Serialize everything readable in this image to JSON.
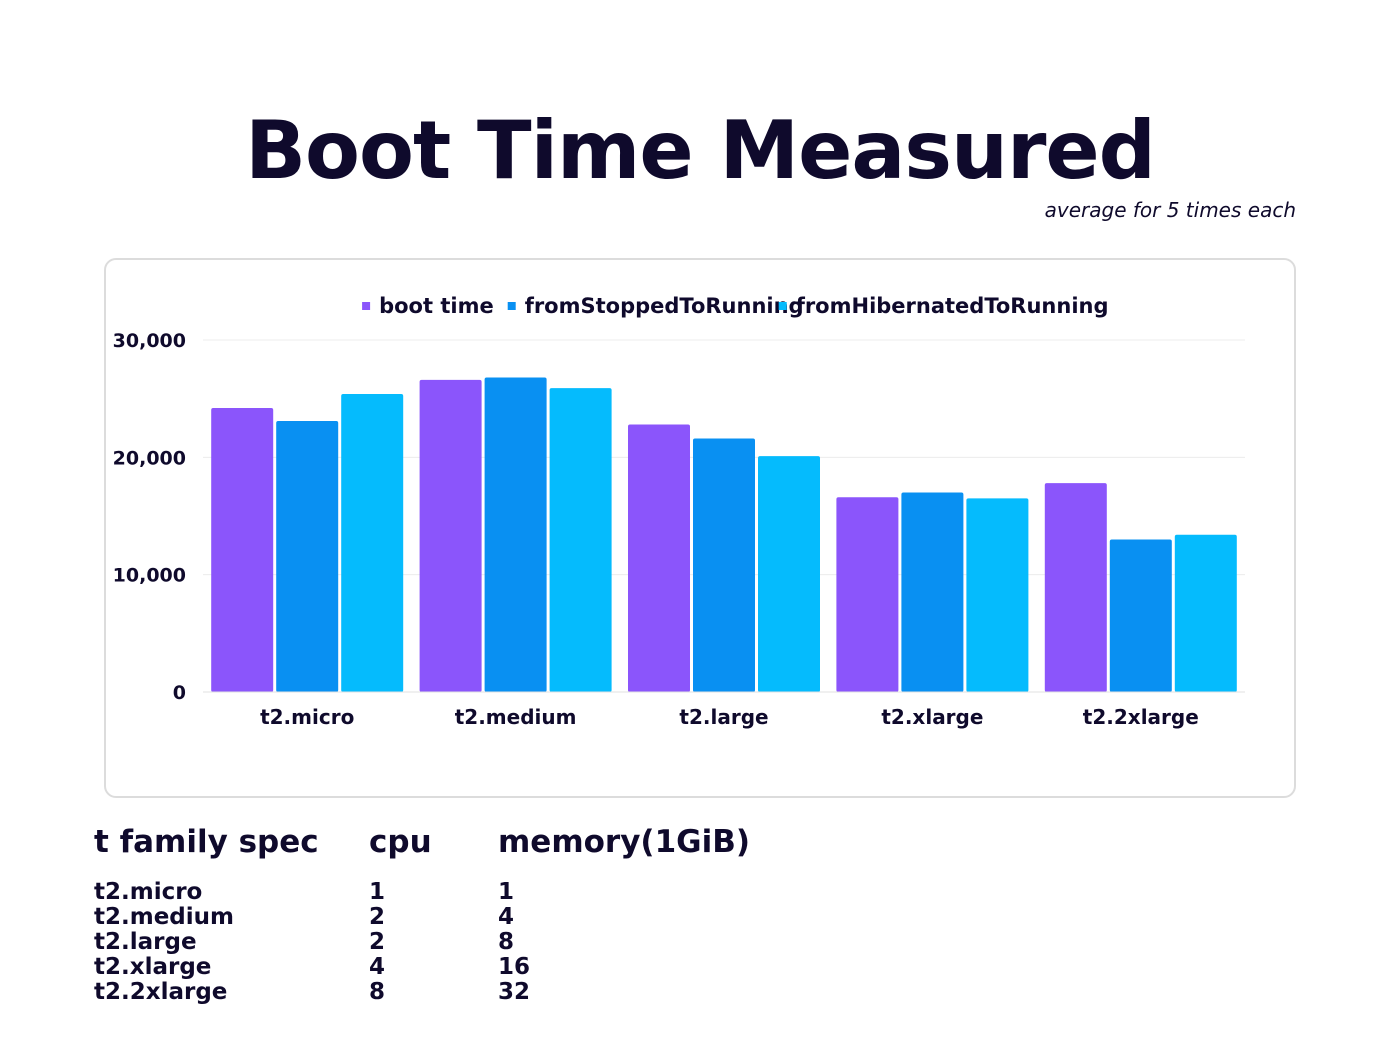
{
  "title": "Boot Time Measured",
  "subtitle": "average for 5 times each",
  "chart_data": {
    "type": "bar",
    "categories": [
      "t2.micro",
      "t2.medium",
      "t2.large",
      "t2.xlarge",
      "t2.2xlarge"
    ],
    "series": [
      {
        "name": "boot time",
        "color": "#8b55fb",
        "values": [
          24200,
          26600,
          22800,
          16600,
          17800
        ]
      },
      {
        "name": "fromStoppedToRunning",
        "color": "#0990f2",
        "values": [
          23100,
          26800,
          21600,
          17000,
          13000
        ]
      },
      {
        "name": "fromHibernatedToRunning",
        "color": "#05bbfd",
        "values": [
          25400,
          25900,
          20100,
          16500,
          13400
        ]
      }
    ],
    "y_ticks": [
      0,
      10000,
      20000,
      30000
    ],
    "y_tick_labels": [
      "0",
      "10,000",
      "20,000",
      "30,000"
    ],
    "ylim": [
      0,
      30000
    ],
    "grid": true,
    "legend_position": "top"
  },
  "spec_table": {
    "headers": [
      "t family spec",
      "cpu",
      "memory(1GiB)"
    ],
    "rows": [
      [
        "t2.micro",
        "1",
        "1"
      ],
      [
        "t2.medium",
        "2",
        "4"
      ],
      [
        "t2.large",
        "2",
        "8"
      ],
      [
        "t2.xlarge",
        "4",
        "16"
      ],
      [
        "t2.2xlarge",
        "8",
        "32"
      ]
    ]
  }
}
